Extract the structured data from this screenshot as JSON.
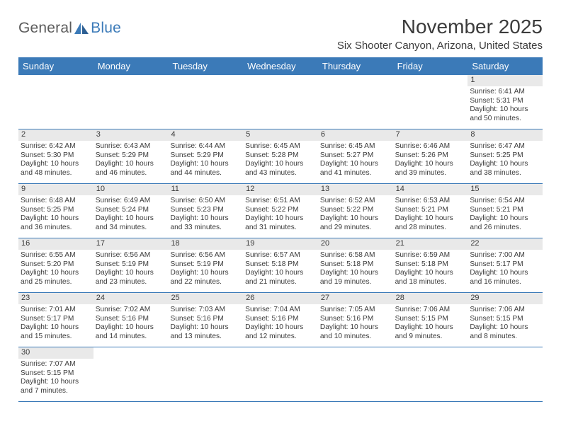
{
  "brand": {
    "name1": "General",
    "name2": "Blue"
  },
  "title": "November 2025",
  "location": "Six Shooter Canyon, Arizona, United States",
  "colors": {
    "header_bg": "#3b7ab8",
    "header_text": "#ffffff",
    "daynum_bg": "#e9e9e9",
    "text": "#3b3b3b",
    "rule": "#3b7ab8"
  },
  "weekdays": [
    "Sunday",
    "Monday",
    "Tuesday",
    "Wednesday",
    "Thursday",
    "Friday",
    "Saturday"
  ],
  "weeks": [
    [
      {
        "n": "",
        "sunrise": "",
        "sunset": "",
        "daylight": ""
      },
      {
        "n": "",
        "sunrise": "",
        "sunset": "",
        "daylight": ""
      },
      {
        "n": "",
        "sunrise": "",
        "sunset": "",
        "daylight": ""
      },
      {
        "n": "",
        "sunrise": "",
        "sunset": "",
        "daylight": ""
      },
      {
        "n": "",
        "sunrise": "",
        "sunset": "",
        "daylight": ""
      },
      {
        "n": "",
        "sunrise": "",
        "sunset": "",
        "daylight": ""
      },
      {
        "n": "1",
        "sunrise": "Sunrise: 6:41 AM",
        "sunset": "Sunset: 5:31 PM",
        "daylight": "Daylight: 10 hours and 50 minutes."
      }
    ],
    [
      {
        "n": "2",
        "sunrise": "Sunrise: 6:42 AM",
        "sunset": "Sunset: 5:30 PM",
        "daylight": "Daylight: 10 hours and 48 minutes."
      },
      {
        "n": "3",
        "sunrise": "Sunrise: 6:43 AM",
        "sunset": "Sunset: 5:29 PM",
        "daylight": "Daylight: 10 hours and 46 minutes."
      },
      {
        "n": "4",
        "sunrise": "Sunrise: 6:44 AM",
        "sunset": "Sunset: 5:29 PM",
        "daylight": "Daylight: 10 hours and 44 minutes."
      },
      {
        "n": "5",
        "sunrise": "Sunrise: 6:45 AM",
        "sunset": "Sunset: 5:28 PM",
        "daylight": "Daylight: 10 hours and 43 minutes."
      },
      {
        "n": "6",
        "sunrise": "Sunrise: 6:45 AM",
        "sunset": "Sunset: 5:27 PM",
        "daylight": "Daylight: 10 hours and 41 minutes."
      },
      {
        "n": "7",
        "sunrise": "Sunrise: 6:46 AM",
        "sunset": "Sunset: 5:26 PM",
        "daylight": "Daylight: 10 hours and 39 minutes."
      },
      {
        "n": "8",
        "sunrise": "Sunrise: 6:47 AM",
        "sunset": "Sunset: 5:25 PM",
        "daylight": "Daylight: 10 hours and 38 minutes."
      }
    ],
    [
      {
        "n": "9",
        "sunrise": "Sunrise: 6:48 AM",
        "sunset": "Sunset: 5:25 PM",
        "daylight": "Daylight: 10 hours and 36 minutes."
      },
      {
        "n": "10",
        "sunrise": "Sunrise: 6:49 AM",
        "sunset": "Sunset: 5:24 PM",
        "daylight": "Daylight: 10 hours and 34 minutes."
      },
      {
        "n": "11",
        "sunrise": "Sunrise: 6:50 AM",
        "sunset": "Sunset: 5:23 PM",
        "daylight": "Daylight: 10 hours and 33 minutes."
      },
      {
        "n": "12",
        "sunrise": "Sunrise: 6:51 AM",
        "sunset": "Sunset: 5:22 PM",
        "daylight": "Daylight: 10 hours and 31 minutes."
      },
      {
        "n": "13",
        "sunrise": "Sunrise: 6:52 AM",
        "sunset": "Sunset: 5:22 PM",
        "daylight": "Daylight: 10 hours and 29 minutes."
      },
      {
        "n": "14",
        "sunrise": "Sunrise: 6:53 AM",
        "sunset": "Sunset: 5:21 PM",
        "daylight": "Daylight: 10 hours and 28 minutes."
      },
      {
        "n": "15",
        "sunrise": "Sunrise: 6:54 AM",
        "sunset": "Sunset: 5:21 PM",
        "daylight": "Daylight: 10 hours and 26 minutes."
      }
    ],
    [
      {
        "n": "16",
        "sunrise": "Sunrise: 6:55 AM",
        "sunset": "Sunset: 5:20 PM",
        "daylight": "Daylight: 10 hours and 25 minutes."
      },
      {
        "n": "17",
        "sunrise": "Sunrise: 6:56 AM",
        "sunset": "Sunset: 5:19 PM",
        "daylight": "Daylight: 10 hours and 23 minutes."
      },
      {
        "n": "18",
        "sunrise": "Sunrise: 6:56 AM",
        "sunset": "Sunset: 5:19 PM",
        "daylight": "Daylight: 10 hours and 22 minutes."
      },
      {
        "n": "19",
        "sunrise": "Sunrise: 6:57 AM",
        "sunset": "Sunset: 5:18 PM",
        "daylight": "Daylight: 10 hours and 21 minutes."
      },
      {
        "n": "20",
        "sunrise": "Sunrise: 6:58 AM",
        "sunset": "Sunset: 5:18 PM",
        "daylight": "Daylight: 10 hours and 19 minutes."
      },
      {
        "n": "21",
        "sunrise": "Sunrise: 6:59 AM",
        "sunset": "Sunset: 5:18 PM",
        "daylight": "Daylight: 10 hours and 18 minutes."
      },
      {
        "n": "22",
        "sunrise": "Sunrise: 7:00 AM",
        "sunset": "Sunset: 5:17 PM",
        "daylight": "Daylight: 10 hours and 16 minutes."
      }
    ],
    [
      {
        "n": "23",
        "sunrise": "Sunrise: 7:01 AM",
        "sunset": "Sunset: 5:17 PM",
        "daylight": "Daylight: 10 hours and 15 minutes."
      },
      {
        "n": "24",
        "sunrise": "Sunrise: 7:02 AM",
        "sunset": "Sunset: 5:16 PM",
        "daylight": "Daylight: 10 hours and 14 minutes."
      },
      {
        "n": "25",
        "sunrise": "Sunrise: 7:03 AM",
        "sunset": "Sunset: 5:16 PM",
        "daylight": "Daylight: 10 hours and 13 minutes."
      },
      {
        "n": "26",
        "sunrise": "Sunrise: 7:04 AM",
        "sunset": "Sunset: 5:16 PM",
        "daylight": "Daylight: 10 hours and 12 minutes."
      },
      {
        "n": "27",
        "sunrise": "Sunrise: 7:05 AM",
        "sunset": "Sunset: 5:16 PM",
        "daylight": "Daylight: 10 hours and 10 minutes."
      },
      {
        "n": "28",
        "sunrise": "Sunrise: 7:06 AM",
        "sunset": "Sunset: 5:15 PM",
        "daylight": "Daylight: 10 hours and 9 minutes."
      },
      {
        "n": "29",
        "sunrise": "Sunrise: 7:06 AM",
        "sunset": "Sunset: 5:15 PM",
        "daylight": "Daylight: 10 hours and 8 minutes."
      }
    ],
    [
      {
        "n": "30",
        "sunrise": "Sunrise: 7:07 AM",
        "sunset": "Sunset: 5:15 PM",
        "daylight": "Daylight: 10 hours and 7 minutes."
      },
      {
        "n": "",
        "sunrise": "",
        "sunset": "",
        "daylight": ""
      },
      {
        "n": "",
        "sunrise": "",
        "sunset": "",
        "daylight": ""
      },
      {
        "n": "",
        "sunrise": "",
        "sunset": "",
        "daylight": ""
      },
      {
        "n": "",
        "sunrise": "",
        "sunset": "",
        "daylight": ""
      },
      {
        "n": "",
        "sunrise": "",
        "sunset": "",
        "daylight": ""
      },
      {
        "n": "",
        "sunrise": "",
        "sunset": "",
        "daylight": ""
      }
    ]
  ]
}
